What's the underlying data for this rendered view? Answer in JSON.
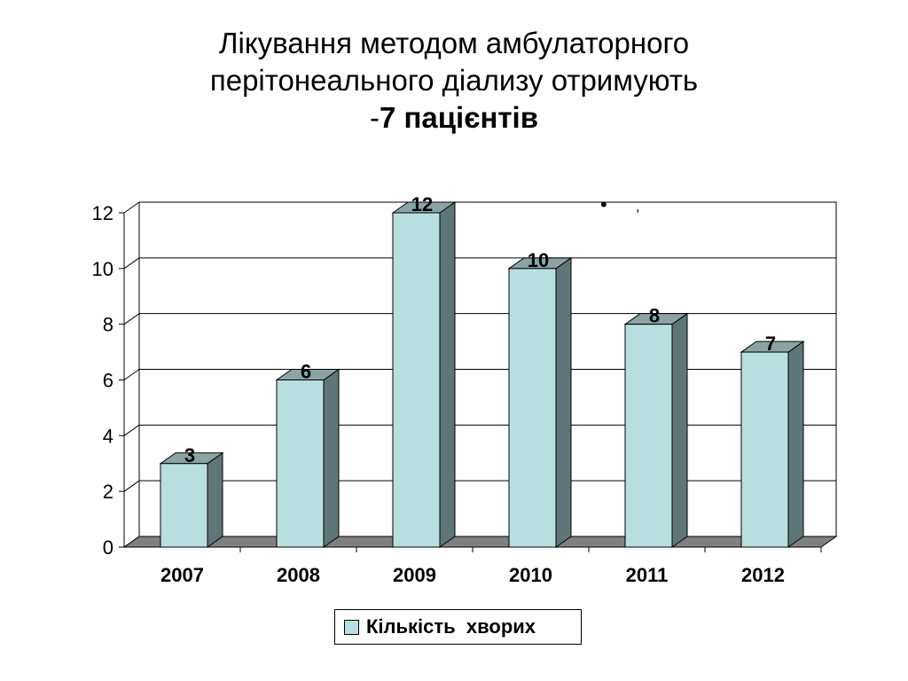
{
  "title": {
    "line1": "Лікування методом амбулаторного",
    "line2": "перітонеального діализу отримують",
    "line3_prefix": "-",
    "line3_bold": "7 пацієнтів"
  },
  "stray_marks": {
    "bullet": "•",
    "comma": ","
  },
  "colors": {
    "bar_front": "#b8dfe0",
    "bar_side": "#5f7678",
    "bar_top": "#8aa4a6",
    "floor": "#808080",
    "grid": "#000000"
  },
  "chart_data": {
    "type": "bar",
    "categories": [
      "2007",
      "2008",
      "2009",
      "2010",
      "2011",
      "2012"
    ],
    "series": [
      {
        "name": "Кількість  хворих",
        "values": [
          3,
          6,
          12,
          10,
          8,
          7
        ]
      }
    ],
    "ylim": [
      0,
      12
    ],
    "yticks": [
      "0",
      "2",
      "4",
      "6",
      "8",
      "10",
      "12"
    ],
    "data_labels": [
      "3",
      "6",
      "12",
      "10",
      "8",
      "7"
    ],
    "grid": true,
    "three_d": true,
    "legend_position": "bottom"
  }
}
